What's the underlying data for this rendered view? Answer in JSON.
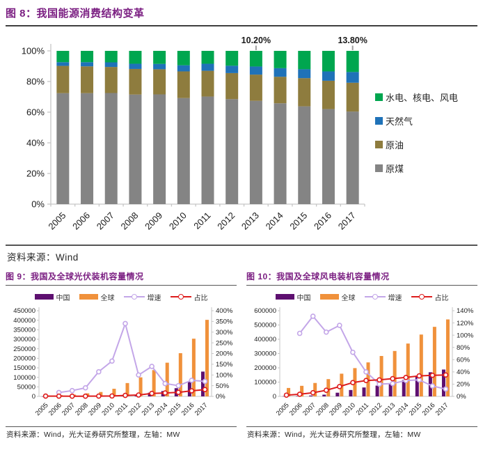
{
  "page": {
    "accent_purple": "#7B1F82",
    "axis_color": "#C6C6C6",
    "annotation_leader_color": "#9E9E9E"
  },
  "figures": {
    "energy": {
      "title": "图 8：我国能源消费结构变革",
      "source": "资料来源：Wind"
    },
    "pv": {
      "title": "图 9：我国及全球光伏装机容量情况",
      "source": "资料来源：Wind，光大证券研究所整理，左轴：MW"
    },
    "wind": {
      "title": "图 10：我国及全球风电装机容量情况",
      "source": "资料来源：Wind，光大证券研究所整理，左轴：MW"
    }
  },
  "chart_data": [
    {
      "id": "energy-structure",
      "type": "bar",
      "stacked": true,
      "title": "我国能源消费结构变革",
      "xlabel": "",
      "ylabel": "",
      "ylim": [
        0,
        100
      ],
      "y_ticks": [
        "0%",
        "20%",
        "40%",
        "60%",
        "80%",
        "100%"
      ],
      "grid": false,
      "legend_position": "right",
      "categories": [
        "2005",
        "2006",
        "2007",
        "2008",
        "2009",
        "2010",
        "2011",
        "2012",
        "2013",
        "2014",
        "2015",
        "2016",
        "2017"
      ],
      "series": [
        {
          "name": "原煤",
          "color": "#848484",
          "values": [
            72.4,
            72.4,
            72.5,
            71.5,
            71.6,
            69.2,
            70.2,
            68.5,
            67.4,
            65.8,
            63.8,
            62.0,
            60.4
          ]
        },
        {
          "name": "原油",
          "color": "#8E7C3E",
          "values": [
            17.8,
            17.5,
            17.0,
            16.7,
            16.4,
            17.4,
            16.8,
            17.0,
            17.1,
            17.3,
            18.4,
            18.5,
            18.8
          ]
        },
        {
          "name": "天然气",
          "color": "#1F72B8",
          "values": [
            2.4,
            2.7,
            3.0,
            3.4,
            3.5,
            4.0,
            4.6,
            4.8,
            5.3,
            5.6,
            5.8,
            6.1,
            7.0
          ]
        },
        {
          "name": "水电、核电、风电",
          "color": "#00A64F",
          "values": [
            7.4,
            7.4,
            7.5,
            8.4,
            8.5,
            9.4,
            8.4,
            9.7,
            10.2,
            11.3,
            12.0,
            13.4,
            13.8
          ]
        }
      ],
      "legend": [
        {
          "label": "水电、核电、风电",
          "color": "#00A64F"
        },
        {
          "label": "天然气",
          "color": "#1F72B8"
        },
        {
          "label": "原油",
          "color": "#8E7C3E"
        },
        {
          "label": "原煤",
          "color": "#848484"
        }
      ],
      "annotations": [
        {
          "category": "2013",
          "text": "10.20%"
        },
        {
          "category": "2017",
          "text": "13.80%"
        }
      ]
    },
    {
      "id": "pv-capacity",
      "type": "bar+line",
      "title": "我国及全球光伏装机容量情况",
      "left_axis_unit": "MW",
      "left_lim": [
        0,
        450000
      ],
      "left_ticks": [
        0,
        50000,
        100000,
        150000,
        200000,
        250000,
        300000,
        350000,
        400000,
        450000
      ],
      "right_lim": [
        0,
        400
      ],
      "right_ticks": [
        0,
        50,
        100,
        150,
        200,
        250,
        300,
        350,
        400
      ],
      "grid": false,
      "legend_position": "top",
      "categories": [
        "2005",
        "2006",
        "2007",
        "2008",
        "2009",
        "2010",
        "2011",
        "2012",
        "2013",
        "2014",
        "2015",
        "2016",
        "2017"
      ],
      "bar_series": [
        {
          "name": "中国",
          "color": "#5E1070",
          "axis": "left",
          "values": [
            70,
            80,
            100,
            140,
            300,
            800,
            3300,
            6500,
            19420,
            28050,
            43180,
            77420,
            130250
          ]
        },
        {
          "name": "全球",
          "color": "#F0913B",
          "axis": "left",
          "values": [
            5100,
            6700,
            9200,
            16000,
            23000,
            40000,
            70000,
            100000,
            138000,
            177000,
            227000,
            303000,
            402000
          ]
        }
      ],
      "line_series": [
        {
          "name": "增速",
          "color": "#C3A6E8",
          "axis": "right",
          "values": [
            null,
            18,
            27,
            40,
            115,
            165,
            340,
            100,
            140,
            60,
            50,
            75,
            70
          ]
        },
        {
          "name": "占比",
          "color": "#DD1C1C",
          "axis": "right",
          "values": [
            1.4,
            1.2,
            1.1,
            0.9,
            1.3,
            2,
            4.7,
            6.5,
            14,
            16,
            19,
            26,
            32
          ]
        }
      ]
    },
    {
      "id": "wind-capacity",
      "type": "bar+line",
      "title": "我国及全球风电装机容量情况",
      "left_axis_unit": "MW",
      "left_lim": [
        0,
        600000
      ],
      "left_ticks": [
        0,
        100000,
        200000,
        300000,
        400000,
        500000,
        600000
      ],
      "right_lim": [
        0,
        140
      ],
      "right_ticks": [
        0,
        20,
        40,
        60,
        80,
        100,
        120,
        140
      ],
      "grid": false,
      "legend_position": "top",
      "categories": [
        "2005",
        "2006",
        "2007",
        "2008",
        "2009",
        "2010",
        "2011",
        "2012",
        "2013",
        "2014",
        "2015",
        "2016",
        "2017"
      ],
      "bar_series": [
        {
          "name": "中国",
          "color": "#5E1070",
          "axis": "left",
          "values": [
            1260,
            2600,
            5900,
            12200,
            25800,
            44700,
            62400,
            75300,
            91400,
            114600,
            145100,
            169000,
            188000
          ]
        },
        {
          "name": "全球",
          "color": "#F0913B",
          "axis": "left",
          "values": [
            59000,
            74000,
            94000,
            121000,
            159000,
            198000,
            238000,
            283000,
            318000,
            370000,
            433000,
            487000,
            539000
          ]
        }
      ],
      "line_series": [
        {
          "name": "增速",
          "color": "#C3A6E8",
          "axis": "right",
          "values": [
            null,
            103,
            131,
            105,
            116,
            72,
            40,
            20,
            21,
            26,
            27,
            17,
            12
          ]
        },
        {
          "name": "占比",
          "color": "#DD1C1C",
          "axis": "right",
          "values": [
            2,
            3.5,
            6,
            10,
            16,
            22.5,
            26,
            27,
            29,
            31,
            33.5,
            34.5,
            35
          ]
        }
      ]
    }
  ]
}
